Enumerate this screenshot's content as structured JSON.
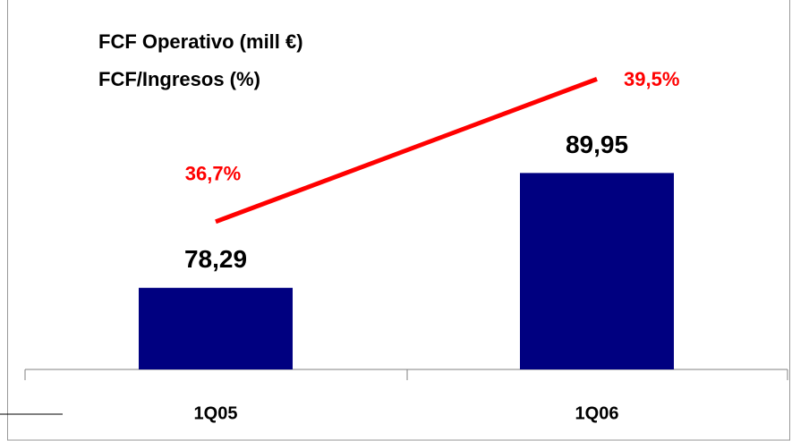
{
  "chart_data": {
    "type": "bar",
    "categories": [
      "1Q05",
      "1Q06"
    ],
    "series": [
      {
        "name": "FCF Operativo  (mill €)",
        "color": "#000080",
        "values": [
          78.29,
          89.95
        ],
        "value_labels": [
          "78,29",
          "89,95"
        ]
      },
      {
        "name": "FCF/Ingresos (%)",
        "type": "line",
        "axis": "y2",
        "color": "#ff0000",
        "values": [
          36.7,
          39.5
        ],
        "value_labels": [
          "36,7%",
          "39,5%"
        ]
      }
    ],
    "ylim": [
      70,
      105.7
    ],
    "y2lim": [
      33.8,
      40.7
    ]
  }
}
